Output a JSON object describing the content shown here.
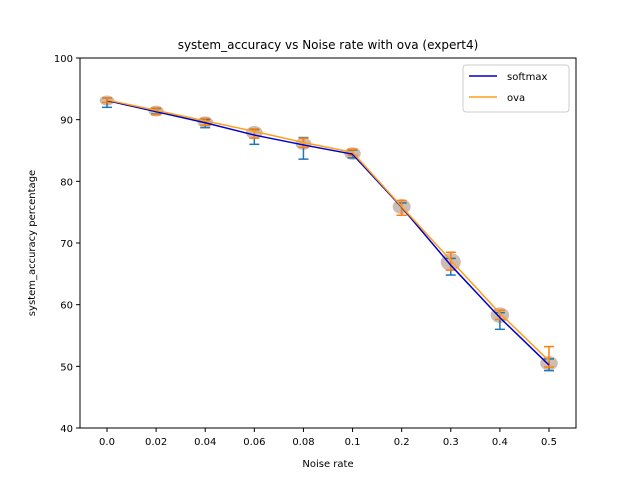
{
  "chart_data": {
    "type": "line",
    "title": "system_accuracy vs Noise rate with ova (expert4)",
    "xlabel": "Noise rate",
    "ylabel": "system_accuracy percentage",
    "categories": [
      "0.0",
      "0.02",
      "0.04",
      "0.06",
      "0.08",
      "0.1",
      "0.2",
      "0.3",
      "0.4",
      "0.5"
    ],
    "ylim": [
      40,
      100
    ],
    "yticks": [
      40,
      50,
      60,
      70,
      80,
      90,
      100
    ],
    "grid": false,
    "legend_position": "top-right",
    "series": [
      {
        "name": "softmax",
        "color": "#0000cc",
        "errorbar_color": "#1f77b4",
        "values": [
          93.1,
          91.3,
          89.5,
          87.5,
          85.9,
          84.4,
          75.8,
          66.4,
          57.9,
          50.2
        ],
        "err_low": [
          92.0,
          90.9,
          88.7,
          86.0,
          83.6,
          83.8,
          74.5,
          64.8,
          56.0,
          49.3
        ],
        "err_high": [
          93.5,
          91.8,
          90.0,
          88.4,
          87.1,
          85.1,
          76.5,
          67.5,
          58.7,
          51.2
        ]
      },
      {
        "name": "ova",
        "color": "#ff9f1c",
        "errorbar_color": "#ff7f0e",
        "values": [
          93.2,
          91.5,
          89.8,
          88.1,
          86.3,
          84.7,
          75.9,
          67.2,
          58.6,
          50.9
        ],
        "err_low": [
          92.8,
          90.8,
          89.1,
          87.0,
          85.5,
          84.2,
          74.5,
          65.6,
          57.6,
          49.9
        ],
        "err_high": [
          93.5,
          91.9,
          90.2,
          88.5,
          87.0,
          85.2,
          76.9,
          68.5,
          59.1,
          53.2
        ]
      }
    ],
    "blobs": [
      {
        "y": 93.1,
        "s": 0.35
      },
      {
        "y": 91.4,
        "s": 0.4
      },
      {
        "y": 89.6,
        "s": 0.45
      },
      {
        "y": 87.9,
        "s": 0.6
      },
      {
        "y": 86.1,
        "s": 0.5
      },
      {
        "y": 84.5,
        "s": 0.55
      },
      {
        "y": 75.9,
        "s": 0.75
      },
      {
        "y": 66.9,
        "s": 1.0
      },
      {
        "y": 58.3,
        "s": 0.8
      },
      {
        "y": 50.5,
        "s": 0.7
      }
    ],
    "blob_color": "#c8b7a8"
  }
}
